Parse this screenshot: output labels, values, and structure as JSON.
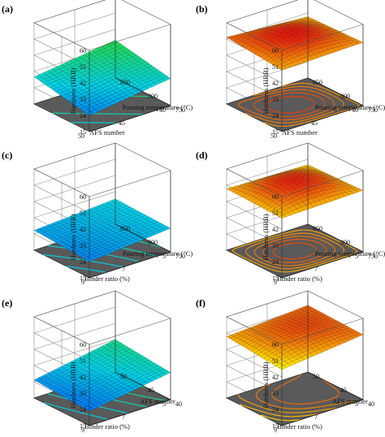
{
  "chart_data": [
    {
      "panel_label": "(a)",
      "type": "surface3d",
      "zlabel": "Hardness (HRB)",
      "zticks": [
        "15",
        "24",
        "33",
        "42",
        "51",
        "60"
      ],
      "zlim": [
        15,
        60
      ],
      "left_axis": {
        "label": "AFS number",
        "ticks": [
          "40",
          "45",
          "50"
        ]
      },
      "right_axis": {
        "label": "Pouring temperature (°C)",
        "ticks": [
          "750",
          "800",
          "850"
        ]
      },
      "surface": {
        "corners": {
          "left_far": 30,
          "left_near": 24,
          "right_near": 30,
          "right_far": 36
        },
        "curvature": 0
      },
      "contours": "diagonal",
      "colormap": "rsm"
    },
    {
      "panel_label": "(b)",
      "type": "surface3d",
      "zlabel": "Hardness (HRB)",
      "zticks": [
        "15",
        "24",
        "33",
        "42",
        "51",
        "60"
      ],
      "zlim": [
        15,
        60
      ],
      "left_axis": {
        "label": "AFS number",
        "ticks": [
          "40",
          "45",
          "50"
        ]
      },
      "right_axis": {
        "label": "Pouring temperature (°C)",
        "ticks": [
          "750",
          "800",
          "850"
        ]
      },
      "surface": {
        "corners": {
          "left_far": 52,
          "left_near": 49,
          "right_near": 50,
          "right_far": 49
        },
        "curvature": 5
      },
      "contours": "elliptic",
      "colormap": "rsm"
    },
    {
      "panel_label": "(c)",
      "type": "surface3d",
      "zlabel": "Hardness (HRB)",
      "zticks": [
        "15",
        "24",
        "33",
        "42",
        "51",
        "60"
      ],
      "zlim": [
        15,
        60
      ],
      "left_axis": {
        "label": "Binder ratio (%)",
        "ticks": [
          "5",
          "7",
          "9"
        ]
      },
      "right_axis": {
        "label": "Pouring temperature (°C)",
        "ticks": [
          "750",
          "800",
          "850"
        ]
      },
      "surface": {
        "corners": {
          "left_far": 26,
          "left_near": 24,
          "right_near": 28,
          "right_far": 29
        },
        "curvature": 0
      },
      "contours": "curved",
      "colormap": "rsm"
    },
    {
      "panel_label": "(d)",
      "type": "surface3d",
      "zlabel": "Hardness (HRB)",
      "zticks": [
        "15",
        "24",
        "33",
        "42",
        "51",
        "60"
      ],
      "zlim": [
        15,
        60
      ],
      "left_axis": {
        "label": "Binder ratio (%)",
        "ticks": [
          "5",
          "7",
          "9"
        ]
      },
      "right_axis": {
        "label": "Pouring temperature (°C)",
        "ticks": [
          "750",
          "800",
          "850"
        ]
      },
      "surface": {
        "corners": {
          "left_far": 49,
          "left_near": 48,
          "right_near": 49,
          "right_far": 48
        },
        "curvature": 6
      },
      "contours": "elliptic",
      "colormap": "rsm"
    },
    {
      "panel_label": "(e)",
      "type": "surface3d",
      "zlabel": "Hardness (HRB)",
      "zticks": [
        "15",
        "24",
        "33",
        "42",
        "51",
        "60"
      ],
      "zlim": [
        15,
        60
      ],
      "left_axis": {
        "label": "Binder ratio (%)",
        "ticks": [
          "5",
          "7",
          "9"
        ]
      },
      "right_axis": {
        "label": "AFS number",
        "ticks": [
          "40",
          "45",
          "50"
        ]
      },
      "surface": {
        "corners": {
          "left_far": 25,
          "left_near": 23,
          "right_near": 30,
          "right_far": 33
        },
        "curvature": 0
      },
      "contours": "curved",
      "colormap": "rsm"
    },
    {
      "panel_label": "(f)",
      "type": "surface3d",
      "zlabel": "Hardness (HRB)",
      "zticks": [
        "15",
        "24",
        "33",
        "42",
        "51",
        "60"
      ],
      "zlim": [
        15,
        60
      ],
      "left_axis": {
        "label": "Binder ratio (%)",
        "ticks": [
          "5",
          "7",
          "9"
        ]
      },
      "right_axis": {
        "label": "AFS number",
        "ticks": [
          "40",
          "45",
          "50"
        ]
      },
      "surface": {
        "corners": {
          "left_far": 49,
          "left_near": 46,
          "right_near": 51,
          "right_far": 52
        },
        "curvature": 3
      },
      "contours": "elliptic",
      "colormap": "rsm"
    }
  ]
}
